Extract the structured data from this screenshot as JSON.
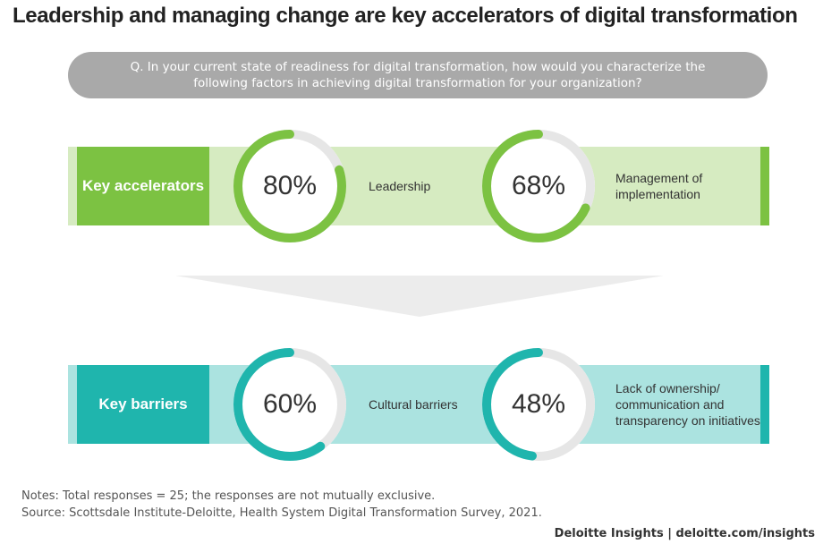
{
  "title": "Leadership and managing change are key accelerators of digital transformation",
  "question": "Q. In your current state of readiness for digital transformation, how would you characterize the following factors in achieving digital transformation for your organization?",
  "colors": {
    "green_dark": "#7cc242",
    "green_light": "#d6ebc1",
    "teal_dark": "#1fb5ad",
    "teal_light": "#abe3e0",
    "ring_track": "#e6e6e6",
    "question_bg": "#a9a9a9"
  },
  "chart_data": {
    "type": "donut",
    "groups": [
      {
        "label": "Key accelerators",
        "items": [
          {
            "factor": "Leadership",
            "value": 80,
            "value_label": "80%"
          },
          {
            "factor": "Management of implementation",
            "lines": [
              "Management of",
              "implementation"
            ],
            "value": 68,
            "value_label": "68%"
          }
        ]
      },
      {
        "label": "Key barriers",
        "items": [
          {
            "factor": "Cultural barriers",
            "value": 60,
            "value_label": "60%"
          },
          {
            "factor": "Lack of ownership/ communication and transparency on initiatives",
            "lines": [
              "Lack of ownership/",
              "communication and",
              "transparency on initiatives"
            ],
            "value": 48,
            "value_label": "48%"
          }
        ]
      }
    ]
  },
  "notes": "Notes: Total responses = 25; the responses are not mutually exclusive.",
  "source": "Source: Scottsdale Institute-Deloitte, Health System Digital Transformation Survey, 2021.",
  "credit": "Deloitte Insights | deloitte.com/insights"
}
